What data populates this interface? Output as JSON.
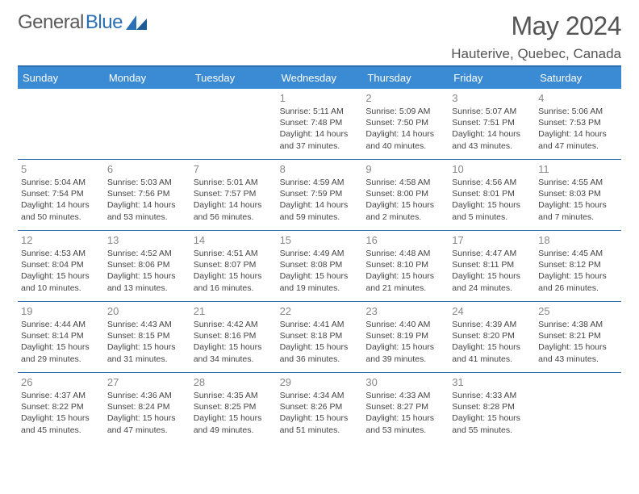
{
  "logo": {
    "part1": "General",
    "part2": "Blue"
  },
  "title": "May 2024",
  "location": "Hauterive, Quebec, Canada",
  "colors": {
    "header_bg": "#3b8bd4",
    "rule": "#2b6fb5",
    "daynum": "#888888",
    "text": "#444444",
    "title_text": "#555555"
  },
  "weekdays": [
    "Sunday",
    "Monday",
    "Tuesday",
    "Wednesday",
    "Thursday",
    "Friday",
    "Saturday"
  ],
  "weeks": [
    [
      null,
      null,
      null,
      {
        "n": "1",
        "sr": "Sunrise: 5:11 AM",
        "ss": "Sunset: 7:48 PM",
        "d1": "Daylight: 14 hours",
        "d2": "and 37 minutes."
      },
      {
        "n": "2",
        "sr": "Sunrise: 5:09 AM",
        "ss": "Sunset: 7:50 PM",
        "d1": "Daylight: 14 hours",
        "d2": "and 40 minutes."
      },
      {
        "n": "3",
        "sr": "Sunrise: 5:07 AM",
        "ss": "Sunset: 7:51 PM",
        "d1": "Daylight: 14 hours",
        "d2": "and 43 minutes."
      },
      {
        "n": "4",
        "sr": "Sunrise: 5:06 AM",
        "ss": "Sunset: 7:53 PM",
        "d1": "Daylight: 14 hours",
        "d2": "and 47 minutes."
      }
    ],
    [
      {
        "n": "5",
        "sr": "Sunrise: 5:04 AM",
        "ss": "Sunset: 7:54 PM",
        "d1": "Daylight: 14 hours",
        "d2": "and 50 minutes."
      },
      {
        "n": "6",
        "sr": "Sunrise: 5:03 AM",
        "ss": "Sunset: 7:56 PM",
        "d1": "Daylight: 14 hours",
        "d2": "and 53 minutes."
      },
      {
        "n": "7",
        "sr": "Sunrise: 5:01 AM",
        "ss": "Sunset: 7:57 PM",
        "d1": "Daylight: 14 hours",
        "d2": "and 56 minutes."
      },
      {
        "n": "8",
        "sr": "Sunrise: 4:59 AM",
        "ss": "Sunset: 7:59 PM",
        "d1": "Daylight: 14 hours",
        "d2": "and 59 minutes."
      },
      {
        "n": "9",
        "sr": "Sunrise: 4:58 AM",
        "ss": "Sunset: 8:00 PM",
        "d1": "Daylight: 15 hours",
        "d2": "and 2 minutes."
      },
      {
        "n": "10",
        "sr": "Sunrise: 4:56 AM",
        "ss": "Sunset: 8:01 PM",
        "d1": "Daylight: 15 hours",
        "d2": "and 5 minutes."
      },
      {
        "n": "11",
        "sr": "Sunrise: 4:55 AM",
        "ss": "Sunset: 8:03 PM",
        "d1": "Daylight: 15 hours",
        "d2": "and 7 minutes."
      }
    ],
    [
      {
        "n": "12",
        "sr": "Sunrise: 4:53 AM",
        "ss": "Sunset: 8:04 PM",
        "d1": "Daylight: 15 hours",
        "d2": "and 10 minutes."
      },
      {
        "n": "13",
        "sr": "Sunrise: 4:52 AM",
        "ss": "Sunset: 8:06 PM",
        "d1": "Daylight: 15 hours",
        "d2": "and 13 minutes."
      },
      {
        "n": "14",
        "sr": "Sunrise: 4:51 AM",
        "ss": "Sunset: 8:07 PM",
        "d1": "Daylight: 15 hours",
        "d2": "and 16 minutes."
      },
      {
        "n": "15",
        "sr": "Sunrise: 4:49 AM",
        "ss": "Sunset: 8:08 PM",
        "d1": "Daylight: 15 hours",
        "d2": "and 19 minutes."
      },
      {
        "n": "16",
        "sr": "Sunrise: 4:48 AM",
        "ss": "Sunset: 8:10 PM",
        "d1": "Daylight: 15 hours",
        "d2": "and 21 minutes."
      },
      {
        "n": "17",
        "sr": "Sunrise: 4:47 AM",
        "ss": "Sunset: 8:11 PM",
        "d1": "Daylight: 15 hours",
        "d2": "and 24 minutes."
      },
      {
        "n": "18",
        "sr": "Sunrise: 4:45 AM",
        "ss": "Sunset: 8:12 PM",
        "d1": "Daylight: 15 hours",
        "d2": "and 26 minutes."
      }
    ],
    [
      {
        "n": "19",
        "sr": "Sunrise: 4:44 AM",
        "ss": "Sunset: 8:14 PM",
        "d1": "Daylight: 15 hours",
        "d2": "and 29 minutes."
      },
      {
        "n": "20",
        "sr": "Sunrise: 4:43 AM",
        "ss": "Sunset: 8:15 PM",
        "d1": "Daylight: 15 hours",
        "d2": "and 31 minutes."
      },
      {
        "n": "21",
        "sr": "Sunrise: 4:42 AM",
        "ss": "Sunset: 8:16 PM",
        "d1": "Daylight: 15 hours",
        "d2": "and 34 minutes."
      },
      {
        "n": "22",
        "sr": "Sunrise: 4:41 AM",
        "ss": "Sunset: 8:18 PM",
        "d1": "Daylight: 15 hours",
        "d2": "and 36 minutes."
      },
      {
        "n": "23",
        "sr": "Sunrise: 4:40 AM",
        "ss": "Sunset: 8:19 PM",
        "d1": "Daylight: 15 hours",
        "d2": "and 39 minutes."
      },
      {
        "n": "24",
        "sr": "Sunrise: 4:39 AM",
        "ss": "Sunset: 8:20 PM",
        "d1": "Daylight: 15 hours",
        "d2": "and 41 minutes."
      },
      {
        "n": "25",
        "sr": "Sunrise: 4:38 AM",
        "ss": "Sunset: 8:21 PM",
        "d1": "Daylight: 15 hours",
        "d2": "and 43 minutes."
      }
    ],
    [
      {
        "n": "26",
        "sr": "Sunrise: 4:37 AM",
        "ss": "Sunset: 8:22 PM",
        "d1": "Daylight: 15 hours",
        "d2": "and 45 minutes."
      },
      {
        "n": "27",
        "sr": "Sunrise: 4:36 AM",
        "ss": "Sunset: 8:24 PM",
        "d1": "Daylight: 15 hours",
        "d2": "and 47 minutes."
      },
      {
        "n": "28",
        "sr": "Sunrise: 4:35 AM",
        "ss": "Sunset: 8:25 PM",
        "d1": "Daylight: 15 hours",
        "d2": "and 49 minutes."
      },
      {
        "n": "29",
        "sr": "Sunrise: 4:34 AM",
        "ss": "Sunset: 8:26 PM",
        "d1": "Daylight: 15 hours",
        "d2": "and 51 minutes."
      },
      {
        "n": "30",
        "sr": "Sunrise: 4:33 AM",
        "ss": "Sunset: 8:27 PM",
        "d1": "Daylight: 15 hours",
        "d2": "and 53 minutes."
      },
      {
        "n": "31",
        "sr": "Sunrise: 4:33 AM",
        "ss": "Sunset: 8:28 PM",
        "d1": "Daylight: 15 hours",
        "d2": "and 55 minutes."
      },
      null
    ]
  ]
}
